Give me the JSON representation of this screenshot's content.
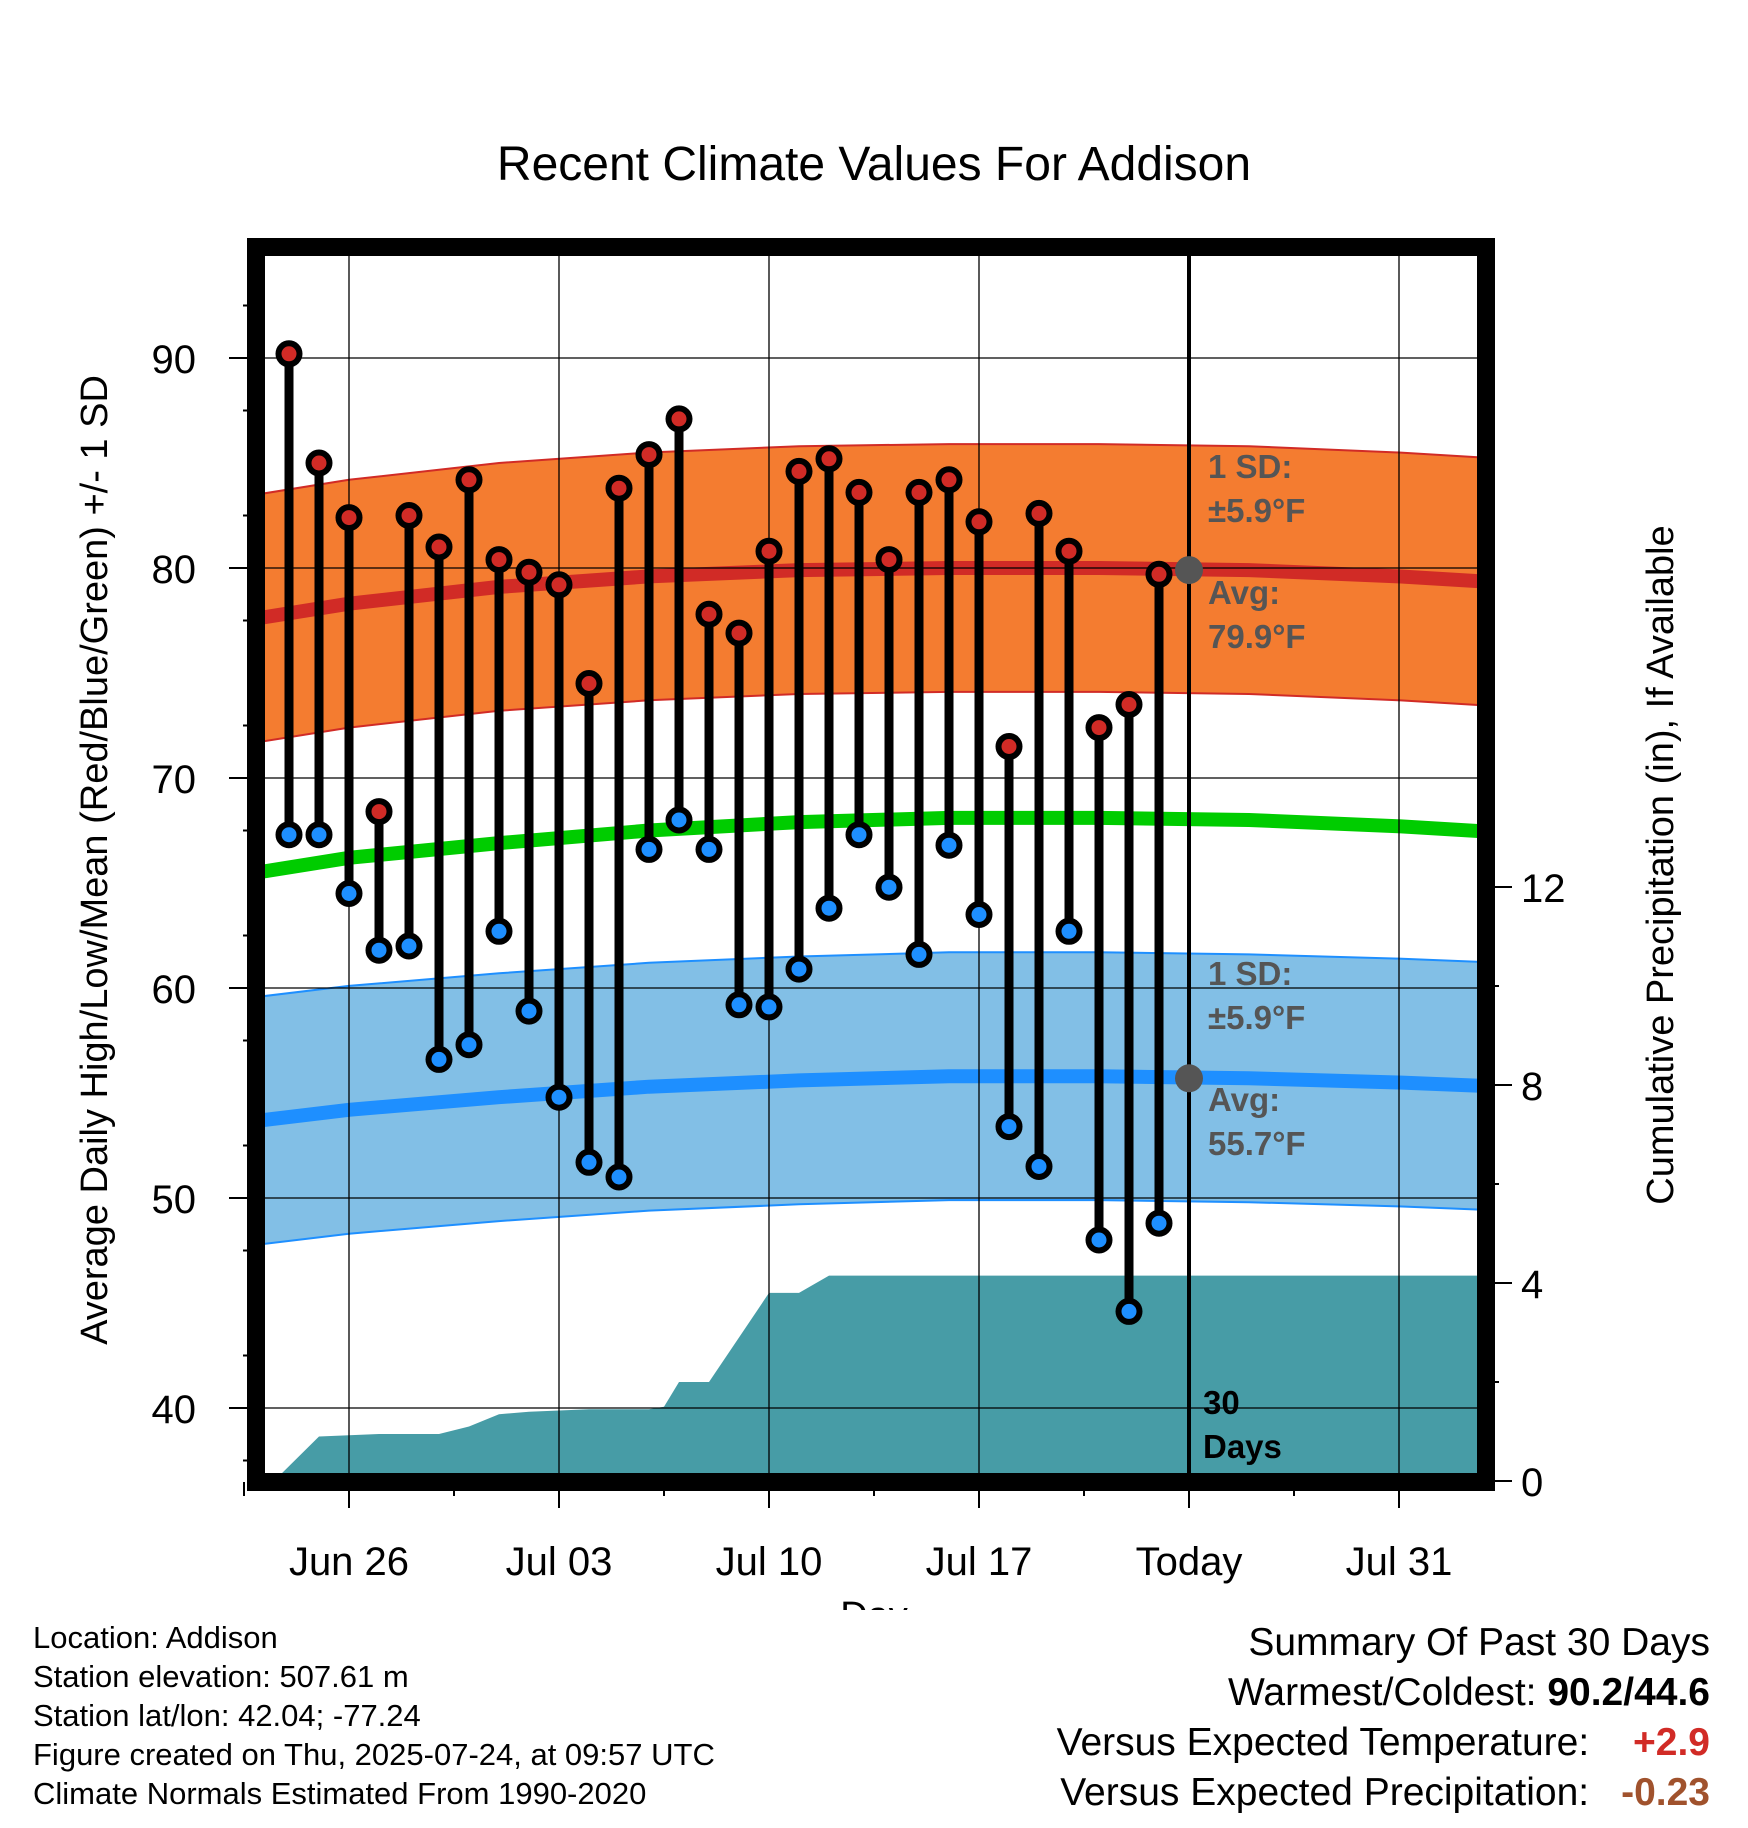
{
  "chart_data": {
    "type": "line",
    "title": "Recent Climate Values For Addison",
    "xlabel": "Day",
    "ylabel_left": "Average Daily High/Low/Mean (Red/Blue/Green) +/- 1 SD",
    "ylabel_right": "Cumulative Precipitation (in), If Available",
    "x_tick_labels": [
      "Jun 26",
      "Jul 03",
      "Jul 10",
      "Jul 17",
      "Today",
      "Jul 31"
    ],
    "y_ticks_left": [
      40,
      50,
      60,
      70,
      80,
      90
    ],
    "y_ticks_right": [
      0,
      4,
      8,
      12
    ],
    "ylim_left": [
      36.7,
      95
    ],
    "ylim_right": [
      0,
      24
    ],
    "grid": true,
    "highs": [
      90.2,
      85.0,
      82.4,
      68.4,
      82.5,
      81.0,
      84.2,
      80.4,
      79.8,
      79.2,
      74.5,
      83.8,
      85.4,
      87.1,
      77.8,
      76.9,
      80.8,
      84.6,
      85.2,
      83.6,
      80.4,
      83.6,
      84.2,
      82.2,
      71.5,
      82.6,
      80.8,
      72.4,
      73.5,
      79.7
    ],
    "lows": [
      67.3,
      67.3,
      64.5,
      61.8,
      62.0,
      56.6,
      57.3,
      62.7,
      58.9,
      54.8,
      51.7,
      51.0,
      66.6,
      68.0,
      66.6,
      59.2,
      59.1,
      60.9,
      63.8,
      67.3,
      64.8,
      61.6,
      66.8,
      63.5,
      53.4,
      51.5,
      62.7,
      48.0,
      44.6,
      48.8
    ],
    "normal_high": {
      "x_days": [
        -3.5,
        0,
        5,
        10,
        15,
        20,
        25,
        30,
        35,
        38.5
      ],
      "values": [
        77.5,
        78.3,
        79.1,
        79.6,
        79.9,
        80.0,
        80.0,
        79.9,
        79.6,
        79.3
      ]
    },
    "normal_mean": {
      "x_days": [
        -3.5,
        0,
        5,
        10,
        15,
        20,
        25,
        30,
        35,
        38.5
      ],
      "values": [
        65.4,
        66.2,
        66.9,
        67.5,
        67.9,
        68.1,
        68.1,
        68.0,
        67.7,
        67.4
      ]
    },
    "normal_low": {
      "x_days": [
        -3.5,
        0,
        5,
        10,
        15,
        20,
        25,
        30,
        35,
        38.5
      ],
      "values": [
        53.6,
        54.2,
        54.8,
        55.3,
        55.6,
        55.8,
        55.8,
        55.7,
        55.5,
        55.3
      ]
    },
    "sd": 5.9,
    "precip_cumulative": {
      "x_days": [
        -2.5,
        -1,
        1,
        3,
        4,
        5,
        6,
        8,
        10,
        10.5,
        11,
        12,
        13,
        14,
        15,
        16,
        17,
        38.5
      ],
      "values": [
        0,
        0.9,
        0.95,
        0.95,
        1.1,
        1.35,
        1.4,
        1.45,
        1.45,
        1.5,
        2.0,
        2.0,
        2.9,
        3.8,
        3.8,
        4.15,
        4.15,
        4.15
      ]
    },
    "today_day": 28,
    "today_normal_high": 79.9,
    "today_normal_low": 55.7,
    "colors": {
      "high_band": "#f47c30",
      "high_line": "#d12b26",
      "mean_line": "#00cc00",
      "low_band": "#82bfe6",
      "low_line": "#1e8fff",
      "precip": "#479ca6",
      "high_marker": "#d12b26",
      "low_marker": "#1e8fff",
      "today_marker": "#555555"
    }
  },
  "annotations": {
    "high_sd_label": [
      "1 SD:",
      "±5.9°F"
    ],
    "high_avg_label": [
      "Avg:",
      "79.9°F"
    ],
    "low_sd_label": [
      "1 SD:",
      "±5.9°F"
    ],
    "low_avg_label": [
      "Avg:",
      "55.7°F"
    ],
    "days_label": [
      "30",
      "Days"
    ]
  },
  "info": {
    "location": "Location: Addison",
    "elevation": "Station elevation: 507.61 m",
    "latlon": "Station lat/lon: 42.04; -77.24",
    "created": "Figure created on Thu, 2025-07-24, at 09:57 UTC",
    "normals": "Climate Normals Estimated From 1990-2020"
  },
  "summary": {
    "title": "Summary Of Past 30 Days",
    "warmest_label": "Warmest/Coldest:",
    "warmest_value": "90.2/44.6",
    "temp_label": "Versus Expected Temperature:",
    "temp_value": "+2.9",
    "temp_color": "#d12b26",
    "precip_label": "Versus Expected Precipitation:",
    "precip_value": "-0.23",
    "precip_color": "#a0522d"
  }
}
